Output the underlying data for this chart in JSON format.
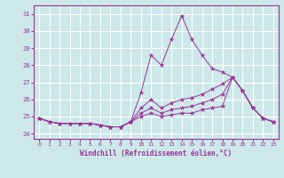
{
  "xlabel": "Windchill (Refroidissement éolien,°C)",
  "xlim": [
    -0.5,
    23.5
  ],
  "ylim": [
    23.7,
    31.5
  ],
  "yticks": [
    24,
    25,
    26,
    27,
    28,
    29,
    30,
    31
  ],
  "xticks": [
    0,
    1,
    2,
    3,
    4,
    5,
    6,
    7,
    8,
    9,
    10,
    11,
    12,
    13,
    14,
    15,
    16,
    17,
    18,
    19,
    20,
    21,
    22,
    23
  ],
  "background_color": "#cce8e8",
  "line_color": "#993399",
  "grid_color": "#ffffff",
  "series": {
    "line1": [
      24.9,
      24.7,
      24.6,
      24.6,
      24.6,
      24.6,
      24.5,
      24.4,
      24.4,
      24.7,
      26.4,
      28.6,
      28.0,
      29.5,
      30.9,
      29.5,
      28.6,
      27.8,
      27.6,
      27.3,
      26.5,
      25.5,
      24.9,
      24.7
    ],
    "line2": [
      24.9,
      24.7,
      24.6,
      24.6,
      24.6,
      24.6,
      24.5,
      24.4,
      24.4,
      24.7,
      25.5,
      26.0,
      25.5,
      25.8,
      26.0,
      26.1,
      26.3,
      26.6,
      26.9,
      27.3,
      26.5,
      25.5,
      24.9,
      24.7
    ],
    "line3": [
      24.9,
      24.7,
      24.6,
      24.6,
      24.6,
      24.6,
      24.5,
      24.4,
      24.4,
      24.7,
      25.2,
      25.5,
      25.2,
      25.4,
      25.5,
      25.6,
      25.8,
      26.0,
      26.3,
      27.3,
      26.5,
      25.5,
      24.9,
      24.7
    ],
    "line4": [
      24.9,
      24.7,
      24.6,
      24.6,
      24.6,
      24.6,
      24.5,
      24.4,
      24.4,
      24.7,
      25.0,
      25.2,
      25.0,
      25.1,
      25.2,
      25.2,
      25.4,
      25.5,
      25.6,
      27.3,
      26.5,
      25.5,
      24.9,
      24.7
    ]
  }
}
